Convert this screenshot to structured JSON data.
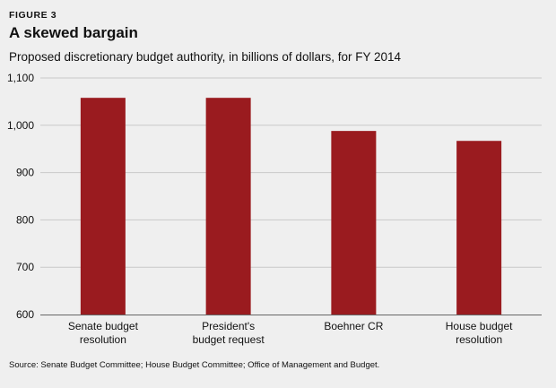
{
  "figure_label": "FIGURE 3",
  "chart_data": {
    "type": "bar",
    "title": "A skewed bargain",
    "subtitle": "Proposed discretionary budget authority, in billions of dollars, for FY 2014",
    "categories": [
      [
        "Senate budget",
        "resolution"
      ],
      [
        "President's",
        "budget request"
      ],
      [
        "Boehner CR"
      ],
      [
        "House budget",
        "resolution"
      ]
    ],
    "values": [
      1058,
      1058,
      988,
      967
    ],
    "ylim": [
      600,
      1100
    ],
    "yticks": [
      600,
      700,
      800,
      900,
      1000,
      1100
    ],
    "ytick_labels": [
      "600",
      "700",
      "800",
      "900",
      "1,000",
      "1,100"
    ],
    "xlabel": "",
    "ylabel": "",
    "grid": true,
    "bar_color": "#9a1b1f",
    "grid_color": "#c9c9c9",
    "axis_color": "#666666"
  },
  "source": "Source: Senate Budget Committee; House Budget Committee; Office of Management and Budget."
}
